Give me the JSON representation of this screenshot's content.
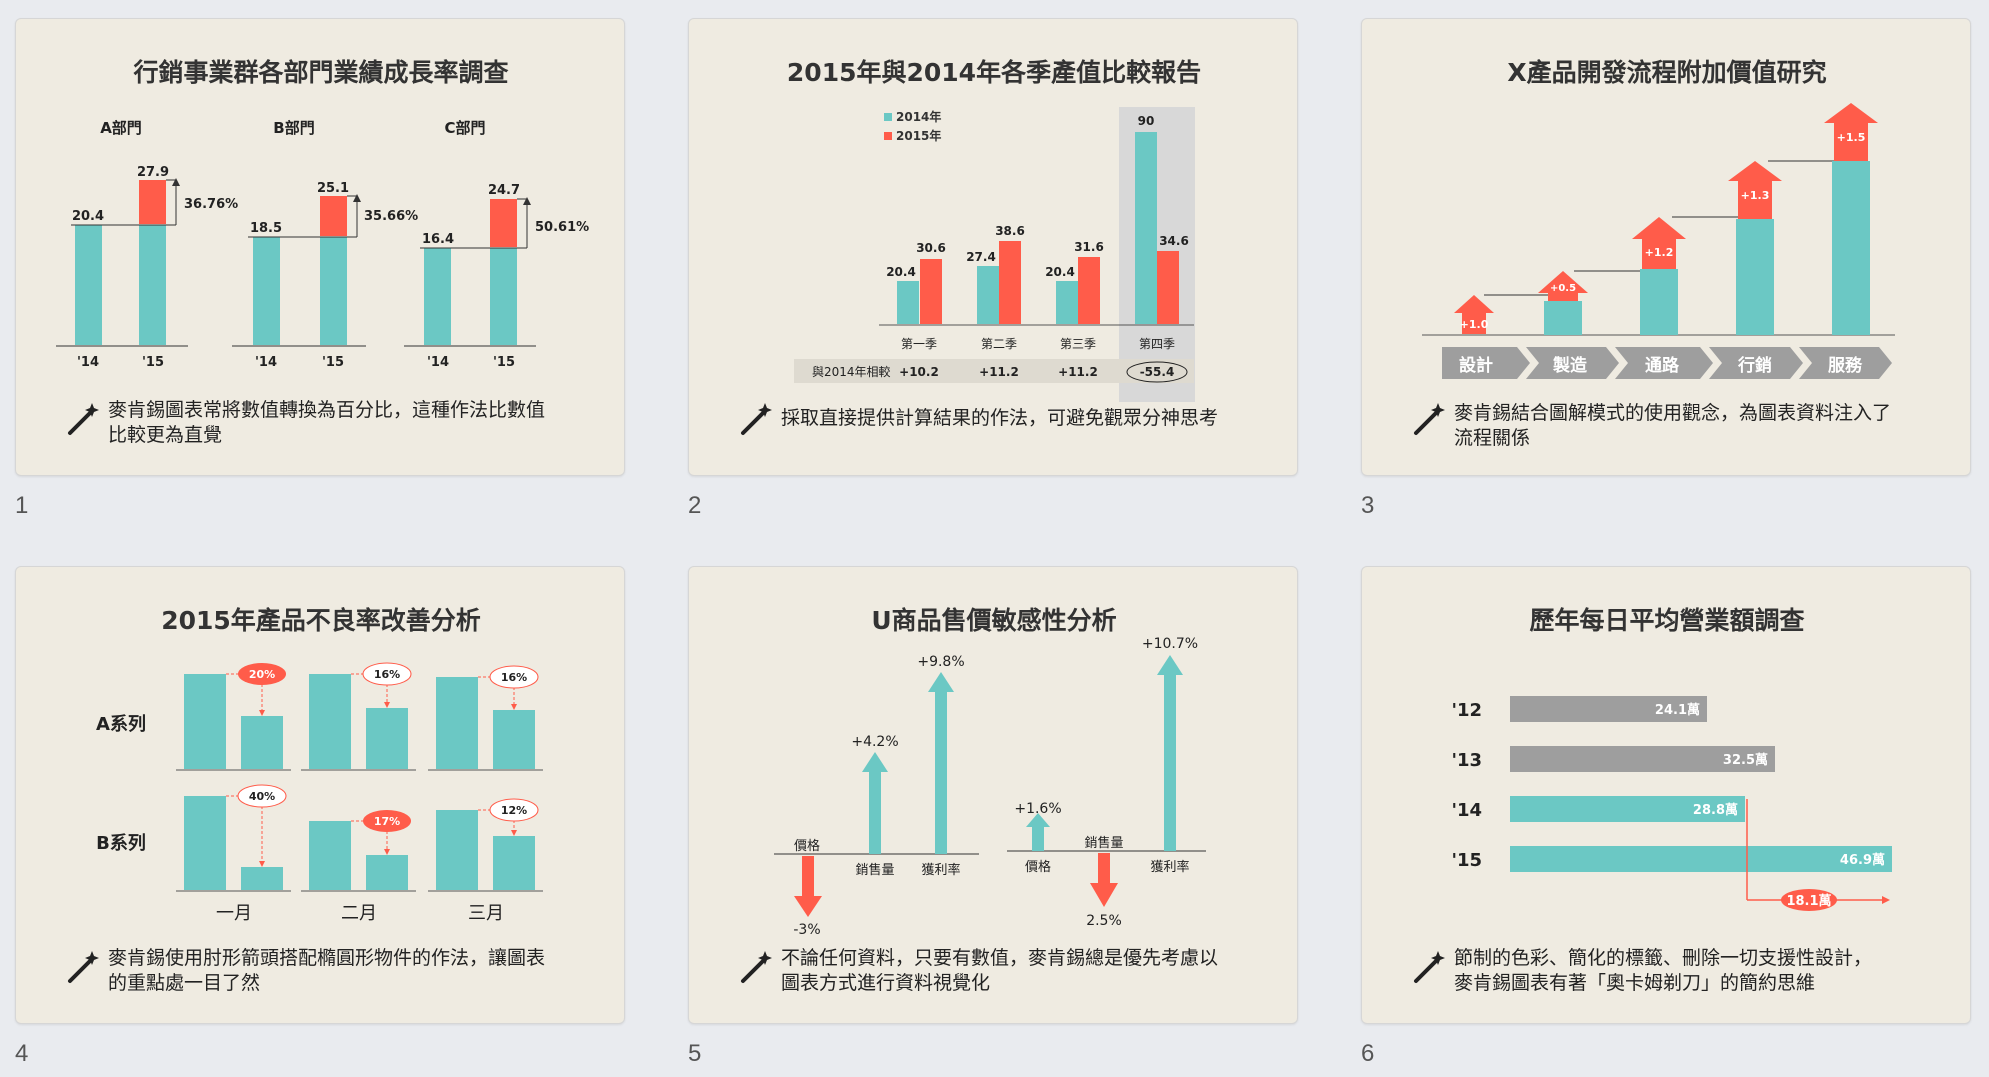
{
  "colors": {
    "teal": "#6bc8c4",
    "red": "#ff5c4a",
    "gray": "#9e9e9e",
    "bg": "#efebe1",
    "page_bg": "#e9ebef"
  },
  "icon": "magic-wand-icon",
  "slides": [
    {
      "number": "1",
      "title": "行銷事業群各部門業績成長率調查",
      "caption": [
        "麥肯錫圖表常將數值轉換為百分比，這種作法比數值",
        "比較更為直覺"
      ],
      "groups": [
        {
          "name": "A部門",
          "v14": "20.4",
          "v15": "27.9",
          "growth": "36.76%"
        },
        {
          "name": "B部門",
          "v14": "18.5",
          "v15": "25.1",
          "growth": "35.66%"
        },
        {
          "name": "C部門",
          "v14": "16.4",
          "v15": "24.7",
          "growth": "50.61%"
        }
      ],
      "year_labels": [
        "'14",
        "'15"
      ]
    },
    {
      "number": "2",
      "title": "2015年與2014年各季產值比較報告",
      "caption": [
        "採取直接提供計算結果的作法，可避免觀眾分神思考"
      ],
      "legend": [
        "2014年",
        "2015年"
      ],
      "quarters": [
        {
          "name": "第一季",
          "v2014": "20.4",
          "v2015": "30.6",
          "diff": "+10.2"
        },
        {
          "name": "第二季",
          "v2014": "27.4",
          "v2015": "38.6",
          "diff": "+11.2"
        },
        {
          "name": "第三季",
          "v2014": "20.4",
          "v2015": "31.6",
          "diff": "+11.2"
        },
        {
          "name": "第四季",
          "v2014": "90",
          "v2015": "34.6",
          "diff": "-55.4"
        }
      ],
      "compare_label": "與2014年相較"
    },
    {
      "number": "3",
      "title": "X產品開發流程附加價值研究",
      "caption": [
        "麥肯錫結合圖解模式的使用觀念，為圖表資料注入了",
        "流程關係"
      ],
      "steps": [
        {
          "name": "設計",
          "delta": "+1.0"
        },
        {
          "name": "製造",
          "delta": "+0.5"
        },
        {
          "name": "通路",
          "delta": "+1.2"
        },
        {
          "name": "行銷",
          "delta": "+1.3"
        },
        {
          "name": "服務",
          "delta": "+1.5"
        }
      ]
    },
    {
      "number": "4",
      "title": "2015年產品不良率改善分析",
      "caption": [
        "麥肯錫使用肘形箭頭搭配橢圓形物件的作法，讓圖表",
        "的重點處一目了然"
      ],
      "rows": [
        {
          "name": "A系列",
          "rates": [
            "20%",
            "16%",
            "16%"
          ]
        },
        {
          "name": "B系列",
          "rates": [
            "40%",
            "17%",
            "12%"
          ]
        }
      ],
      "months": [
        "一月",
        "二月",
        "三月"
      ]
    },
    {
      "number": "5",
      "title": "U商品售價敏感性分析",
      "caption": [
        "不論任何資料，只要有數值，麥肯錫總是優先考慮以",
        "圖表方式進行資料視覺化"
      ],
      "left": {
        "labels": [
          "價格",
          "銷售量",
          "獲利率"
        ],
        "values": [
          "-3%",
          "+4.2%",
          "+9.8%"
        ]
      },
      "right": {
        "labels": [
          "價格",
          "銷售量",
          "獲利率"
        ],
        "values": [
          "+1.6%",
          "2.5%",
          "+10.7%"
        ]
      }
    },
    {
      "number": "6",
      "title": "歷年每日平均營業額調查",
      "caption": [
        "節制的色彩、簡化的標籤、刪除一切支援性設計，",
        "麥肯錫圖表有著「奧卡姆剃刀」的簡約思維"
      ],
      "bars": [
        {
          "year": "'12",
          "value": "24.1萬"
        },
        {
          "year": "'13",
          "value": "32.5萬"
        },
        {
          "year": "'14",
          "value": "28.8萬"
        },
        {
          "year": "'15",
          "value": "46.9萬"
        }
      ],
      "diff": "18.1萬"
    }
  ]
}
